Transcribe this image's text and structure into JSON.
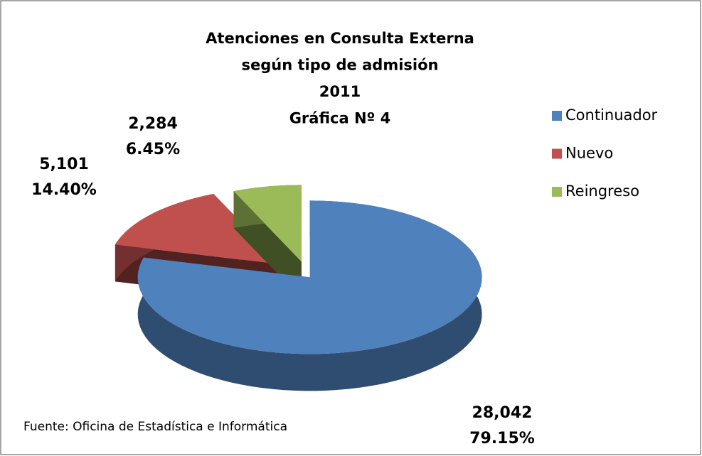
{
  "chart_data": {
    "type": "pie",
    "title": [
      "Atenciones en Consulta Externa",
      "según tipo de admisión",
      "2011",
      "Gráfica Nº 4"
    ],
    "categories": [
      "Continuador",
      "Nuevo",
      "Reingreso"
    ],
    "values": [
      28042,
      5101,
      2284
    ],
    "value_labels": [
      "28,042",
      "5,101",
      "2,284"
    ],
    "percentages": [
      79.15,
      14.4,
      6.45
    ],
    "percent_labels": [
      "79.15%",
      "14.40%",
      "6.45%"
    ],
    "colors": [
      "#4f81bd",
      "#c0504d",
      "#9bbb59"
    ],
    "legend": "right",
    "source": "Fuente: Oficina de Estadística e Informática"
  }
}
